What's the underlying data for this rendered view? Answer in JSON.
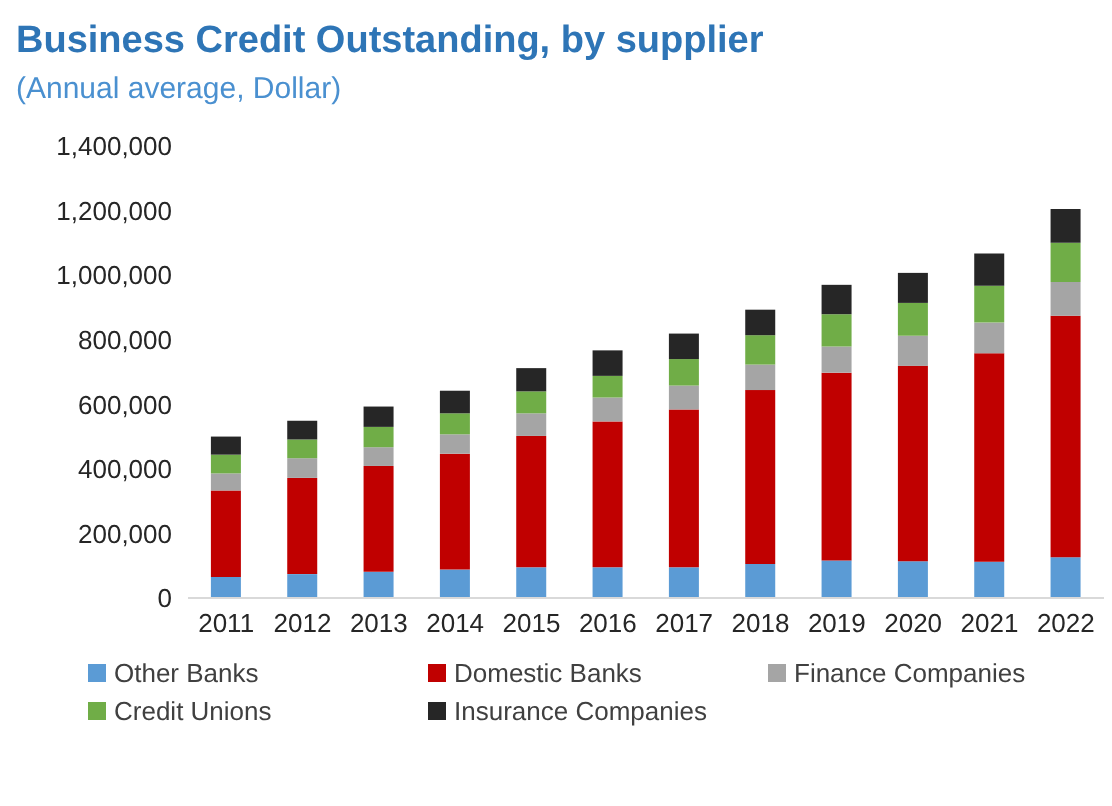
{
  "chart_data": {
    "type": "bar",
    "title": "Business Credit Outstanding, by supplier",
    "subtitle": "(Annual average, Dollar)",
    "categories": [
      "2011",
      "2012",
      "2013",
      "2014",
      "2015",
      "2016",
      "2017",
      "2018",
      "2019",
      "2020",
      "2021",
      "2022"
    ],
    "stacked": true,
    "series": [
      {
        "name": "Other Banks",
        "color": "#5b9bd5",
        "values": [
          65000,
          74000,
          81000,
          88000,
          95000,
          95000,
          95000,
          105000,
          116000,
          114000,
          112000,
          126000
        ]
      },
      {
        "name": "Domestic Banks",
        "color": "#c00000",
        "values": [
          268000,
          298000,
          328000,
          359000,
          407000,
          452000,
          489000,
          539000,
          582000,
          605000,
          646000,
          748000
        ]
      },
      {
        "name": "Finance Companies",
        "color": "#a5a5a5",
        "values": [
          53000,
          61000,
          58000,
          60000,
          70000,
          74000,
          74000,
          79000,
          81000,
          93000,
          95000,
          105000
        ]
      },
      {
        "name": "Credit Unions",
        "color": "#70ad47",
        "values": [
          58000,
          58000,
          63000,
          65000,
          68000,
          67000,
          82000,
          91000,
          100000,
          102000,
          114000,
          121000
        ]
      },
      {
        "name": "Insurance Companies",
        "color": "#262626",
        "values": [
          56000,
          58000,
          63000,
          70000,
          72000,
          79000,
          79000,
          79000,
          91000,
          93000,
          100000,
          105000
        ]
      }
    ],
    "ylim": [
      0,
      1400000
    ],
    "yticks": [
      0,
      {
        "value": 200000,
        "label": "200,000"
      },
      {
        "value": 400000,
        "label": "400,000"
      },
      {
        "value": 600000,
        "label": "600,000"
      },
      {
        "value": 800000,
        "label": "800,000"
      },
      {
        "value": 1000000,
        "label": "1,000,000"
      },
      {
        "value": 1200000,
        "label": "1,200,000"
      },
      {
        "value": 1400000,
        "label": "1,400,000"
      }
    ],
    "grid": false,
    "legend": "bottom"
  }
}
